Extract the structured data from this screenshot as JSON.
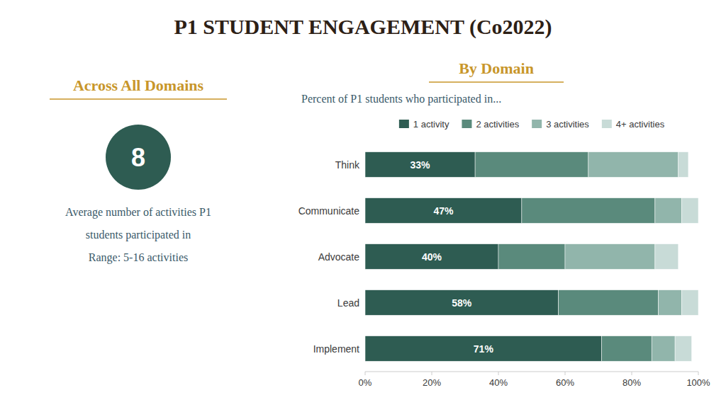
{
  "chart_data": {
    "type": "bar",
    "orientation": "horizontal",
    "stacked": true,
    "title": "P1 STUDENT ENGAGEMENT (Co2022)",
    "subtitle": "Percent of P1 students who participated in...",
    "annotations": [
      "Across All Domains",
      "8",
      "Average number of activities P1",
      "students participated in",
      "Range: 5-16 activities",
      "By Domain"
    ],
    "categories": [
      "Think",
      "Communicate",
      "Advocate",
      "Lead",
      "Implement"
    ],
    "series": [
      {
        "name": "1 activity",
        "color": "#2e5c52",
        "values": [
          33,
          47,
          40,
          58,
          71
        ],
        "data_labels": true,
        "value_labels": [
          "33%",
          "47%",
          "40%",
          "58%",
          "71%"
        ]
      },
      {
        "name": "2 activities",
        "color": "#5a8a7c",
        "values": [
          34,
          40,
          20,
          30,
          15
        ]
      },
      {
        "name": "3 activities",
        "color": "#91b5ab",
        "values": [
          27,
          8,
          27,
          7,
          7
        ]
      },
      {
        "name": "4+ activities",
        "color": "#c8dbd7",
        "values": [
          3,
          5,
          7,
          5,
          5
        ]
      }
    ],
    "xlim": [
      0,
      100
    ],
    "xticks": [
      {
        "value": 0,
        "label": "0%"
      },
      {
        "value": 20,
        "label": "20%"
      },
      {
        "value": 40,
        "label": "40%"
      },
      {
        "value": 60,
        "label": "60%"
      },
      {
        "value": 80,
        "label": "80%"
      },
      {
        "value": 100,
        "label": "100%"
      }
    ],
    "grid": false,
    "legend": "top"
  }
}
